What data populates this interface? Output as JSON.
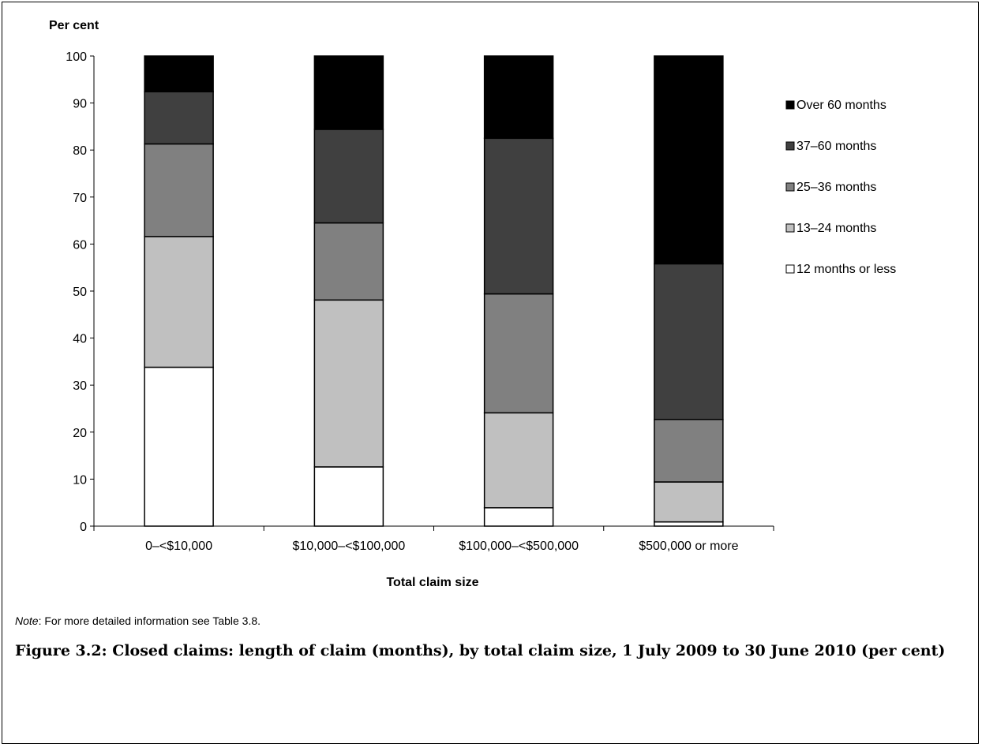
{
  "chart_data": {
    "type": "bar",
    "stacked": true,
    "ylabel": "Per cent",
    "xlabel": "Total claim size",
    "ylim": [
      0,
      100
    ],
    "yticks": [
      0,
      10,
      20,
      30,
      40,
      50,
      60,
      70,
      80,
      90,
      100
    ],
    "categories": [
      "0–<$10,000",
      "$10,000–<$100,000",
      "$100,000–<$500,000",
      "$500,000 or more"
    ],
    "legend_position": "right",
    "series": [
      {
        "name": "12 months or less",
        "color": "#ffffff",
        "values": [
          33.8,
          12.6,
          3.9,
          0.9
        ]
      },
      {
        "name": "13–24 months",
        "color": "#c0c0c0",
        "values": [
          27.8,
          35.5,
          20.2,
          8.5
        ]
      },
      {
        "name": "25–36 months",
        "color": "#808080",
        "values": [
          19.7,
          16.4,
          25.3,
          13.3
        ]
      },
      {
        "name": "37–60 months",
        "color": "#404040",
        "values": [
          11.1,
          19.9,
          33.1,
          33.1
        ]
      },
      {
        "name": "Over 60 months",
        "color": "#000000",
        "values": [
          7.6,
          15.6,
          17.5,
          44.2
        ]
      }
    ]
  },
  "note": {
    "label": "Note",
    "text": ": For more detailed information see Table 3.8."
  },
  "caption": "Figure 3.2: Closed claims: length of claim (months), by total claim size, 1 July 2009 to 30 June 2010 (per cent)"
}
